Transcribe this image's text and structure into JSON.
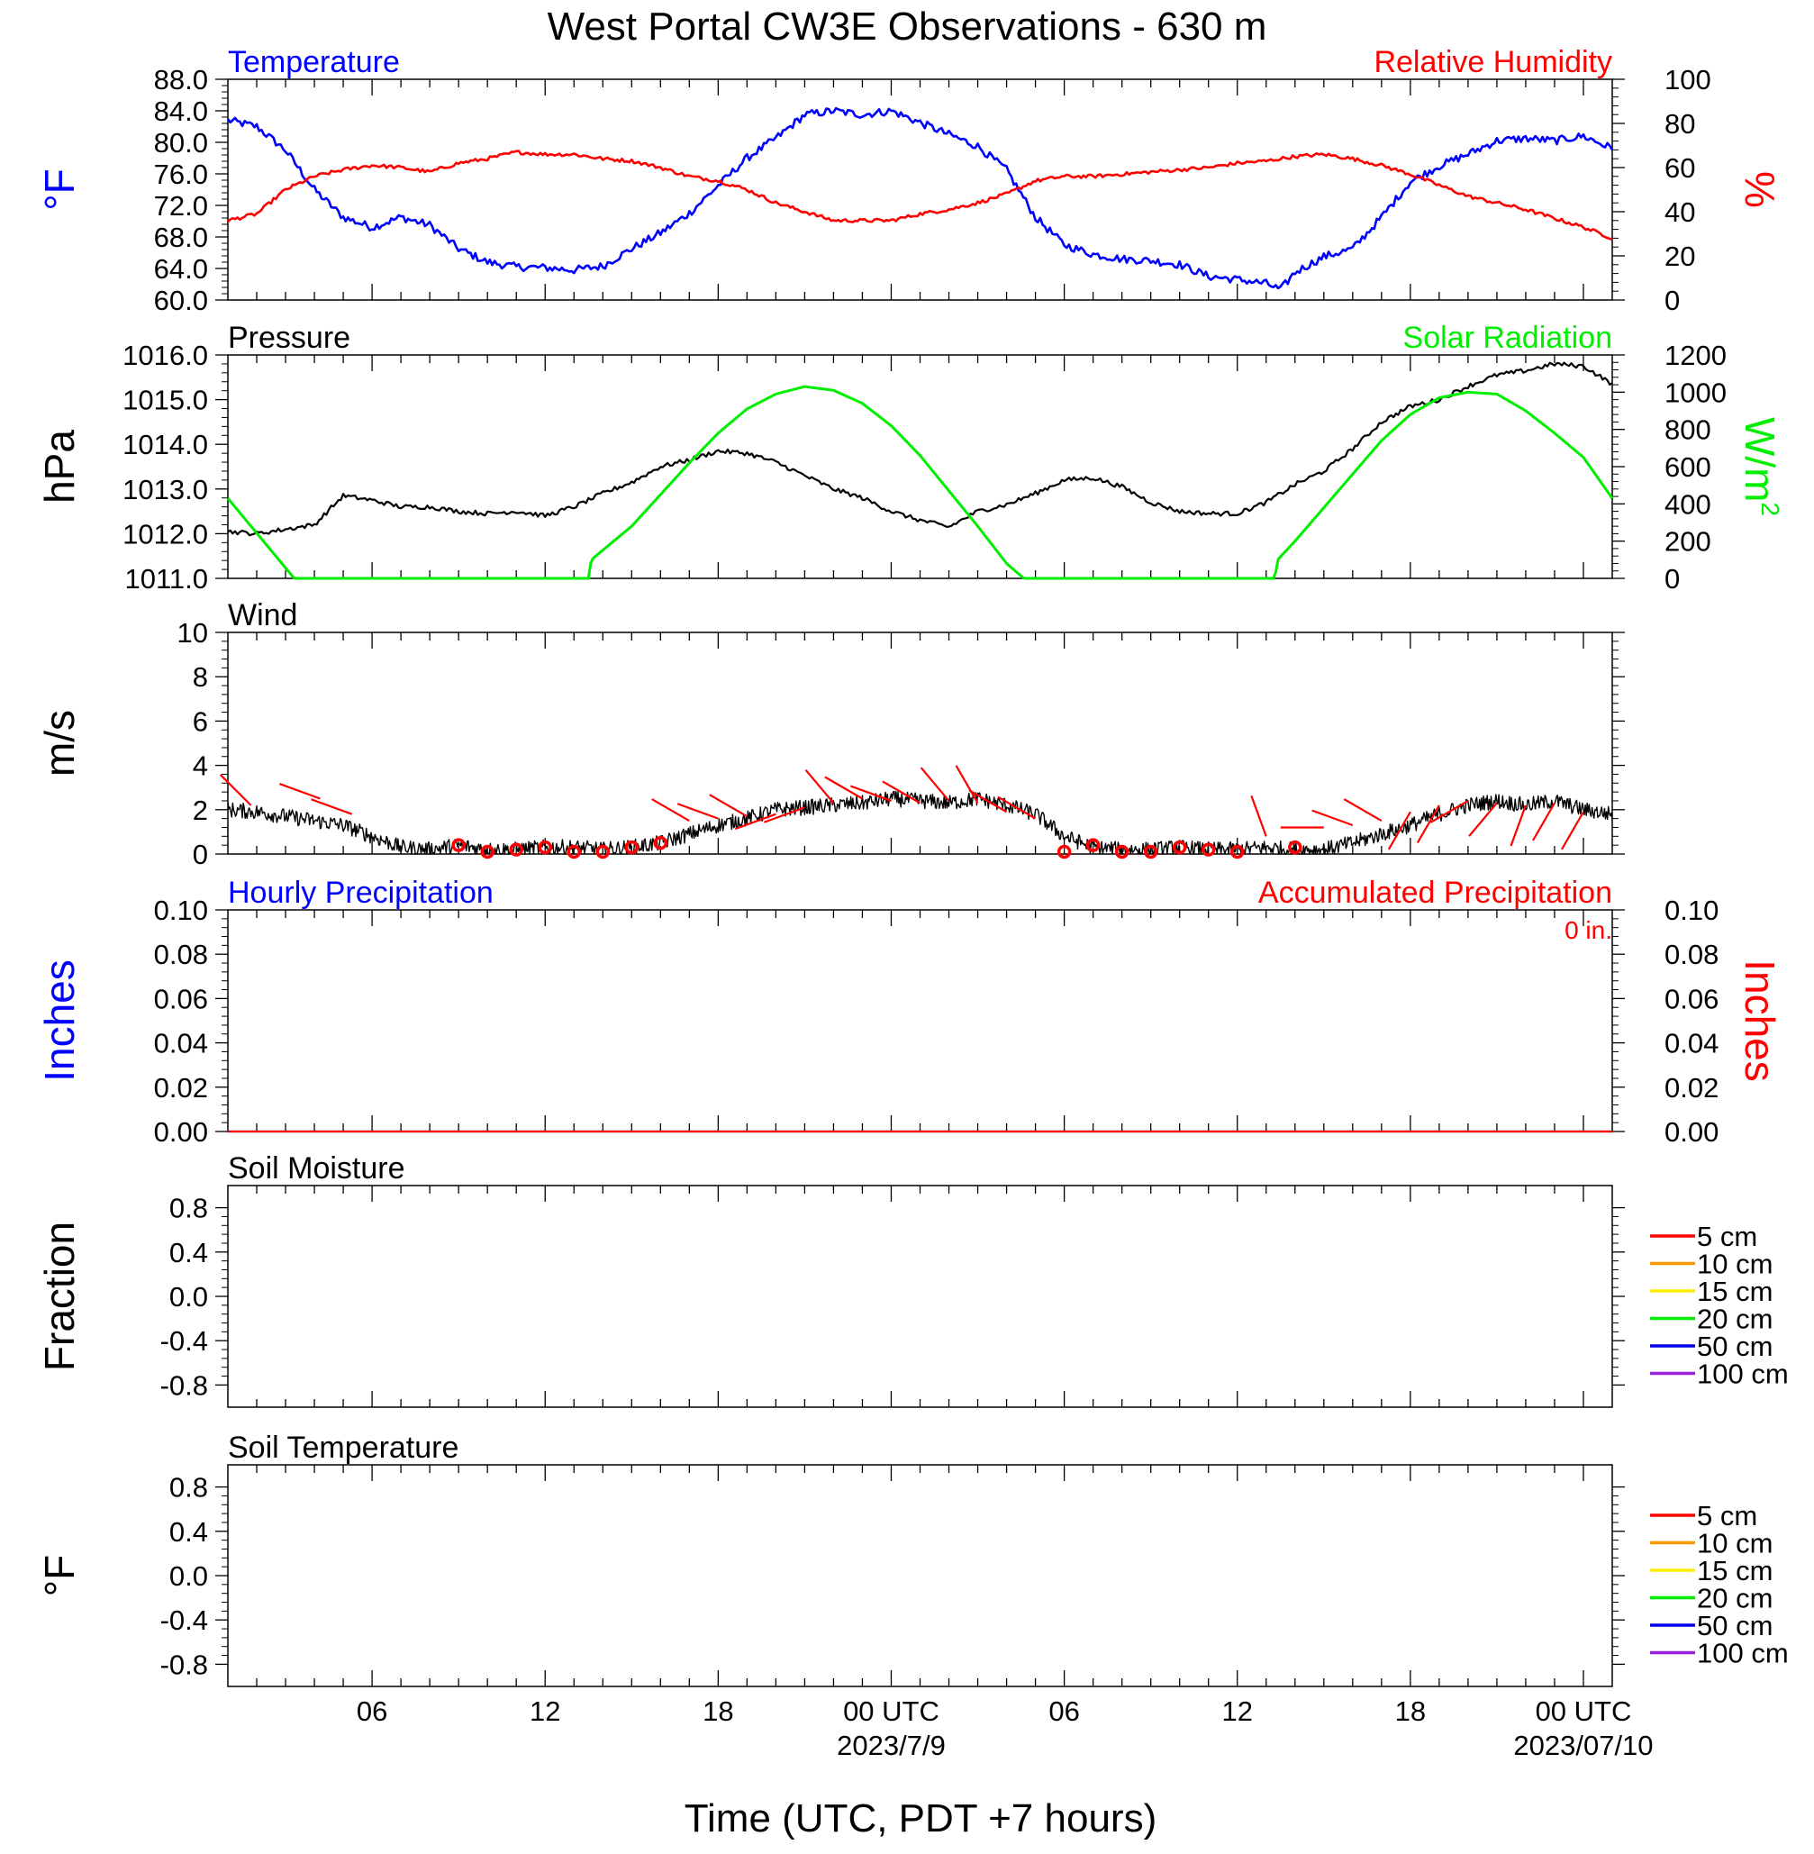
{
  "title": "West Portal CW3E Observations - 630 m",
  "x_axis": {
    "label": "Time (UTC, PDT +7 hours)",
    "ticks": [
      "06",
      "12",
      "18",
      "00 UTC",
      "06",
      "12",
      "18",
      "00 UTC"
    ],
    "tick_hours": [
      6,
      12,
      18,
      24,
      30,
      36,
      42,
      48
    ],
    "dates": [
      "2023/7/9",
      "2023/07/10"
    ],
    "date_hours": [
      24,
      48
    ],
    "range_hours": [
      1,
      49
    ]
  },
  "colors": {
    "temperature": "#0000ff",
    "humidity": "#ff0000",
    "pressure": "#000000",
    "solar": "#00ee00",
    "wind": "#000000",
    "wind_barb": "#ff0000",
    "precip_hourly": "#0000ff",
    "precip_accum": "#ff0000",
    "soil_5cm": "#ff0000",
    "soil_10cm": "#ff9900",
    "soil_15cm": "#ffee00",
    "soil_20cm": "#00ee00",
    "soil_50cm": "#0000ee",
    "soil_100cm": "#9922dd"
  },
  "chart_data": [
    {
      "type": "line",
      "panel": "temperature_humidity",
      "left_title": "Temperature",
      "right_title": "Relative Humidity",
      "ylabel_left": "°F",
      "ylabel_right": "%",
      "ylim_left": [
        60,
        88
      ],
      "ylim_right": [
        0,
        100
      ],
      "yticks_left": [
        "88.0",
        "84.0",
        "80.0",
        "76.0",
        "72.0",
        "68.0",
        "64.0",
        "60.0"
      ],
      "yticks_right": [
        "100",
        "80",
        "60",
        "40",
        "20",
        "0"
      ],
      "series": [
        {
          "name": "Temperature",
          "axis": "left",
          "x_hours": [
            1,
            2,
            3,
            4,
            5,
            6,
            7,
            8,
            9,
            10,
            11,
            12,
            13,
            14,
            15,
            16,
            17,
            18,
            19,
            20,
            21,
            22,
            23,
            24,
            25,
            26,
            27,
            28,
            29,
            30,
            31,
            32,
            33,
            34,
            35,
            36,
            37,
            37.5,
            38,
            39,
            40,
            41,
            42,
            43,
            44,
            45,
            46,
            47,
            48,
            49
          ],
          "values": [
            82.8,
            82,
            79,
            74,
            70.5,
            69.2,
            70.5,
            69.5,
            66.5,
            64.8,
            64.2,
            64.1,
            63.8,
            64.3,
            66.5,
            68.5,
            71,
            74.5,
            78,
            80.5,
            83.5,
            84,
            83.5,
            84,
            82.5,
            81,
            79.5,
            76.5,
            70.5,
            67,
            65.8,
            65.2,
            65,
            64.5,
            63,
            62.6,
            62.1,
            61.3,
            63.5,
            65.5,
            66.5,
            70.5,
            75,
            77,
            78.5,
            80.2,
            80.5,
            80.2,
            80.8,
            79.2
          ]
        },
        {
          "name": "Relative Humidity",
          "axis": "right",
          "x_hours": [
            1,
            2,
            3,
            4,
            5,
            6,
            7,
            8,
            9,
            10,
            11,
            12,
            13,
            14,
            15,
            16,
            17,
            18,
            19,
            20,
            21,
            22,
            23,
            24,
            25,
            26,
            27,
            28,
            29,
            30,
            31,
            32,
            33,
            34,
            35,
            36,
            37,
            38,
            39,
            40,
            41,
            42,
            43,
            44,
            45,
            46,
            47,
            48,
            49
          ],
          "values": [
            36,
            39,
            50,
            56,
            59,
            61,
            60,
            58,
            62,
            64,
            67,
            66,
            66,
            64,
            63,
            60,
            56,
            54,
            50,
            44,
            40,
            36,
            36,
            36,
            39,
            41,
            44,
            48,
            54,
            56,
            56,
            57,
            58,
            59,
            60,
            62,
            63,
            65,
            66,
            64,
            61,
            57,
            52,
            47,
            44,
            41,
            37,
            33,
            28
          ]
        }
      ]
    },
    {
      "type": "line",
      "panel": "pressure_solar",
      "left_title": "Pressure",
      "right_title": "Solar Radiation",
      "ylabel_left": "hPa",
      "ylabel_right": "W/m",
      "ylabel_right_sup": "2",
      "ylim_left": [
        1011,
        1016
      ],
      "ylim_right": [
        0,
        1200
      ],
      "yticks_left": [
        "1016.0",
        "1015.0",
        "1014.0",
        "1013.0",
        "1012.0",
        "1011.0"
      ],
      "yticks_right": [
        "1200",
        "1000",
        "800",
        "600",
        "400",
        "200",
        "0"
      ],
      "series": [
        {
          "name": "Pressure",
          "axis": "left",
          "x_hours": [
            1,
            2,
            3,
            4,
            5,
            6,
            7,
            8,
            9,
            10,
            11,
            12,
            13,
            14,
            15,
            16,
            17,
            18,
            19,
            20,
            21,
            22,
            23,
            24,
            25,
            26,
            27,
            28,
            29,
            30,
            31,
            32,
            33,
            34,
            35,
            36,
            37,
            38,
            39,
            40,
            41,
            42,
            43,
            44,
            45,
            46,
            47,
            48,
            49
          ],
          "values": [
            1012.05,
            1012.0,
            1012.1,
            1012.2,
            1012.85,
            1012.75,
            1012.6,
            1012.6,
            1012.5,
            1012.45,
            1012.5,
            1012.4,
            1012.6,
            1012.9,
            1013.15,
            1013.5,
            1013.65,
            1013.85,
            1013.8,
            1013.6,
            1013.3,
            1013.0,
            1012.8,
            1012.5,
            1012.3,
            1012.15,
            1012.5,
            1012.65,
            1012.9,
            1013.2,
            1013.25,
            1013.05,
            1012.7,
            1012.5,
            1012.45,
            1012.45,
            1012.7,
            1013.1,
            1013.4,
            1013.9,
            1014.5,
            1014.85,
            1015.0,
            1015.3,
            1015.55,
            1015.65,
            1015.8,
            1015.75,
            1015.35
          ]
        },
        {
          "name": "Solar Radiation",
          "axis": "right",
          "x_hours": [
            1,
            3.3,
            13.5,
            13.6,
            15,
            16,
            17,
            18,
            19,
            20,
            21,
            22,
            23,
            24,
            25,
            26,
            27,
            28,
            28.6,
            37.3,
            37.4,
            38,
            39,
            40,
            41,
            42,
            43,
            44,
            45,
            46,
            47,
            48,
            49
          ],
          "values": [
            430,
            0,
            0,
            100,
            280,
            450,
            620,
            780,
            910,
            990,
            1030,
            1010,
            940,
            820,
            660,
            470,
            280,
            80,
            0,
            0,
            100,
            200,
            380,
            560,
            740,
            880,
            970,
            1000,
            990,
            900,
            780,
            650,
            430
          ]
        }
      ]
    },
    {
      "type": "line",
      "panel": "wind",
      "left_title": "Wind",
      "ylabel_left": "m/s",
      "ylim_left": [
        0,
        10
      ],
      "yticks_left": [
        "10",
        "8",
        "6",
        "4",
        "2",
        "0"
      ],
      "series": [
        {
          "name": "Wind",
          "axis": "left",
          "x_hours": [
            1,
            2,
            3,
            4,
            5,
            6,
            7,
            8,
            9,
            10,
            11,
            12,
            13,
            14,
            15,
            16,
            17,
            18,
            19,
            20,
            21,
            22,
            23,
            24,
            25,
            26,
            27,
            28,
            29,
            30,
            31,
            32,
            33,
            34,
            35,
            36,
            37,
            38,
            39,
            40,
            41,
            42,
            43,
            44,
            45,
            46,
            47,
            48,
            49
          ],
          "values": [
            2.0,
            1.9,
            1.7,
            1.5,
            1.3,
            0.8,
            0.3,
            0.2,
            0.4,
            0.2,
            0.2,
            0.3,
            0.3,
            0.2,
            0.3,
            0.5,
            0.9,
            1.3,
            1.6,
            2.0,
            2.1,
            2.2,
            2.3,
            2.5,
            2.4,
            2.3,
            2.5,
            2.2,
            1.8,
            0.8,
            0.3,
            0.2,
            0.2,
            0.3,
            0.2,
            0.2,
            0.3,
            0.2,
            0.2,
            0.5,
            0.9,
            1.3,
            1.8,
            2.2,
            2.4,
            2.2,
            2.4,
            2.0,
            1.8
          ]
        }
      ],
      "barbs": {
        "name": "Wind direction",
        "x_hours": [
          1.8,
          4.2,
          5.3,
          9,
          10,
          11,
          12,
          13,
          14,
          15,
          16,
          17,
          18,
          19,
          20,
          21,
          22,
          23,
          24,
          25,
          26,
          27,
          28,
          29,
          30,
          31,
          32,
          33,
          34,
          35,
          36,
          37,
          38,
          39,
          40,
          41,
          42,
          43,
          44,
          45,
          46,
          47,
          48
        ],
        "speed": [
          2.2,
          2.5,
          1.8,
          0.4,
          0.1,
          0.2,
          0.3,
          0.1,
          0.1,
          0.3,
          0.5,
          1.5,
          1.6,
          1.7,
          1.8,
          2.1,
          2.3,
          2.5,
          2.4,
          2.3,
          2.4,
          2.3,
          1.9,
          1.6,
          0.1,
          0.4,
          0.1,
          0.1,
          0.3,
          0.2,
          0.1,
          0.8,
          0.3,
          1.2,
          1.3,
          1.5,
          1.9,
          2.2,
          2.4,
          2.3,
          2.2,
          2.3,
          1.9
        ],
        "dir_deg": [
          315,
          290,
          290,
          0,
          0,
          0,
          0,
          0,
          0,
          0,
          0,
          300,
          290,
          300,
          250,
          250,
          320,
          300,
          290,
          300,
          320,
          330,
          300,
          300,
          0,
          0,
          0,
          0,
          0,
          0,
          0,
          340,
          0,
          270,
          290,
          300,
          210,
          210,
          240,
          220,
          200,
          210,
          210
        ],
        "calm_marker": "circle"
      }
    },
    {
      "type": "line",
      "panel": "precipitation",
      "left_title": "Hourly Precipitation",
      "right_title": "Accumulated Precipitation",
      "accumulated_label": "0 in.",
      "ylabel_left": "Inches",
      "ylabel_right": "Inches",
      "ylim_left": [
        0,
        0.1
      ],
      "ylim_right": [
        0,
        0.1
      ],
      "yticks_left": [
        "0.10",
        "0.08",
        "0.06",
        "0.04",
        "0.02",
        "0.00"
      ],
      "yticks_right": [
        "0.10",
        "0.08",
        "0.06",
        "0.04",
        "0.02",
        "0.00"
      ],
      "series": [
        {
          "name": "Hourly Precipitation",
          "axis": "left",
          "x_hours": [
            1,
            49
          ],
          "values": [
            0,
            0
          ]
        },
        {
          "name": "Accumulated Precipitation",
          "axis": "right",
          "x_hours": [
            1,
            49
          ],
          "values": [
            0,
            0
          ]
        }
      ]
    },
    {
      "type": "line",
      "panel": "soil_moisture",
      "left_title": "Soil Moisture",
      "ylabel_left": "Fraction",
      "ylim_left": [
        -1,
        1
      ],
      "yticks_left": [
        "0.8",
        "0.4",
        "0.0",
        "-0.4",
        "-0.8"
      ],
      "legend_placement": "right",
      "legend": [
        "5 cm",
        "10 cm",
        "15 cm",
        "20 cm",
        "50 cm",
        "100 cm"
      ],
      "series": []
    },
    {
      "type": "line",
      "panel": "soil_temperature",
      "left_title": "Soil Temperature",
      "ylabel_left": "°F",
      "ylim_left": [
        -1,
        1
      ],
      "yticks_left": [
        "0.8",
        "0.4",
        "0.0",
        "-0.4",
        "-0.8"
      ],
      "legend_placement": "right",
      "legend": [
        "5 cm",
        "10 cm",
        "15 cm",
        "20 cm",
        "50 cm",
        "100 cm"
      ],
      "series": []
    }
  ]
}
